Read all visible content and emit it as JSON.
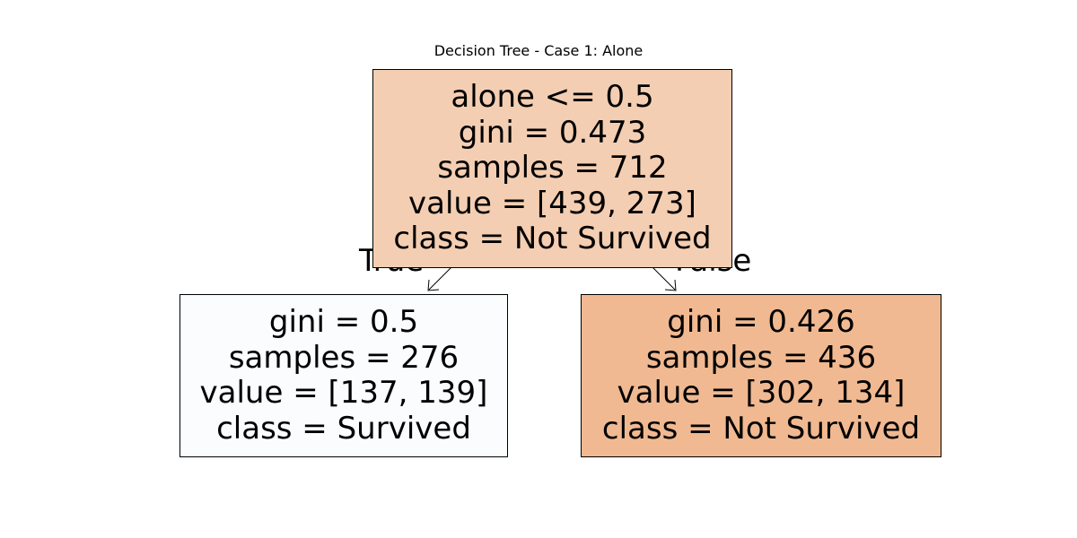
{
  "figure": {
    "title": "Decision Tree - Case 1: Alone",
    "edge_labels": {
      "true": "True",
      "false": "False"
    }
  },
  "nodes": {
    "root": {
      "split": "alone <= 0.5",
      "gini": "gini = 0.473",
      "samples": "samples = 712",
      "value": "value = [439, 273]",
      "class": "class = Not Survived",
      "fill": "#f4ceb2"
    },
    "left": {
      "gini": "gini = 0.5",
      "samples": "samples = 276",
      "value": "value = [137, 139]",
      "class": "class = Survived",
      "fill": "#fafcfe"
    },
    "right": {
      "gini": "gini = 0.426",
      "samples": "samples = 436",
      "value": "value = [302, 134]",
      "class": "class = Not Survived",
      "fill": "#f0b991"
    }
  }
}
